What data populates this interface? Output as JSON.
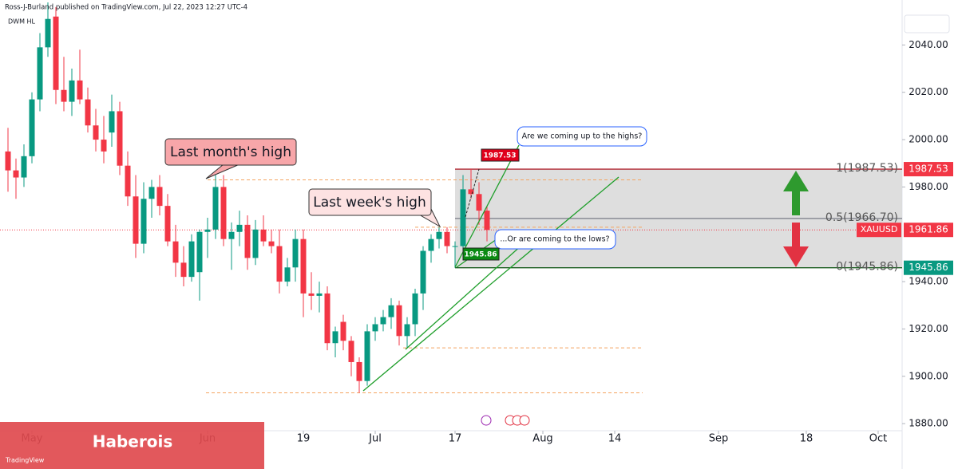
{
  "header": {
    "byline": "Ross-J-Burland published on TradingView.com, Jul 22, 2023 12:27 UTC-4",
    "indicator": "DWM HL"
  },
  "chart_data": {
    "type": "candlestick",
    "symbol": "XAUUSD",
    "open": [
      1995,
      1987,
      1984,
      1993,
      2017,
      2039,
      2052,
      2021,
      2016,
      2025,
      2017,
      2006,
      2000,
      2003,
      2012,
      1989,
      1976,
      1956,
      1975,
      1980,
      1972,
      1957,
      1948,
      1942,
      1944,
      1961,
      1962,
      1980,
      1958,
      1961,
      1964,
      1950,
      1962,
      1957,
      1955,
      1940,
      1946,
      1958,
      1935,
      1934,
      1935,
      1914,
      1923,
      1915,
      1906,
      1898,
      1919,
      1922,
      1925,
      1930,
      1917,
      1922,
      1935,
      1953,
      1958,
      1961,
      1955,
      1955,
      1979,
      1977,
      1970
    ],
    "high": [
      2005,
      1992,
      1998,
      2020,
      2045,
      2058,
      2056,
      2035,
      2030,
      2038,
      2022,
      2013,
      2010,
      2019,
      2016,
      1995,
      1985,
      1982,
      1983,
      1985,
      1977,
      1964,
      1955,
      1960,
      1962,
      1967,
      1985,
      1985,
      1965,
      1970,
      1968,
      1966,
      1968,
      1962,
      1962,
      1950,
      1962,
      1962,
      1944,
      1940,
      1938,
      1921,
      1926,
      1917,
      1908,
      1922,
      1925,
      1928,
      1933,
      1932,
      1925,
      1937,
      1955,
      1960,
      1963,
      1963,
      1957,
      1985,
      1987.53,
      1982,
      1972
    ],
    "low": [
      1978,
      1975,
      1980,
      1990,
      2012,
      2035,
      2015,
      2012,
      2010,
      2015,
      2003,
      1995,
      1990,
      1997,
      1985,
      1972,
      1950,
      1952,
      1967,
      1968,
      1955,
      1942,
      1938,
      1940,
      1932,
      1950,
      1958,
      1955,
      1945,
      1955,
      1945,
      1947,
      1955,
      1952,
      1935,
      1938,
      1940,
      1925,
      1928,
      1927,
      1911,
      1908,
      1911,
      1900,
      1893,
      1896,
      1915,
      1919,
      1920,
      1913,
      1912,
      1917,
      1928,
      1948,
      1954,
      1952,
      1945.86,
      1952,
      1975,
      1964,
      1957
    ],
    "close": [
      1987,
      1984,
      1993,
      2017,
      2039,
      2051,
      2021,
      2016,
      2025,
      2017,
      2006,
      2000,
      1995,
      2012,
      1989,
      1976,
      1956,
      1975,
      1980,
      1972,
      1957,
      1948,
      1942,
      1957,
      1961,
      1962,
      1980,
      1958,
      1961,
      1964,
      1950,
      1962,
      1957,
      1955,
      1940,
      1946,
      1958,
      1935,
      1934,
      1935,
      1914,
      1919,
      1915,
      1906,
      1898,
      1919,
      1922,
      1925,
      1930,
      1917,
      1922,
      1935,
      1953,
      1958,
      1961,
      1955,
      1955,
      1979,
      1977,
      1970,
      1961.86
    ],
    "up_color": "#089981",
    "down_color": "#f23645",
    "xlim": [
      -1,
      112
    ],
    "xticks": [
      {
        "value": 3,
        "label": "May"
      },
      {
        "value": 25,
        "label": "Jun"
      },
      {
        "value": 37,
        "label": "19"
      },
      {
        "value": 46,
        "label": "Jul"
      },
      {
        "value": 56,
        "label": "17"
      },
      {
        "value": 67,
        "label": "Aug"
      },
      {
        "value": 76,
        "label": "14"
      },
      {
        "value": 89,
        "label": "Sep"
      },
      {
        "value": 100,
        "label": "18"
      },
      {
        "value": 109,
        "label": "Oct"
      }
    ],
    "ylim": [
      1877,
      2059
    ],
    "yticks": [
      {
        "value": 2040,
        "label": "2040.00"
      },
      {
        "value": 2020,
        "label": "2020.00"
      },
      {
        "value": 2000,
        "label": "2000.00"
      },
      {
        "value": 1980,
        "label": "1980.00"
      },
      {
        "value": 1940,
        "label": "1940.00"
      },
      {
        "value": 1920,
        "label": "1920.00"
      },
      {
        "value": 1900,
        "label": "1900.00"
      },
      {
        "value": 1880,
        "label": "1880.00"
      }
    ],
    "last_price": 1961.86,
    "axis_tags": [
      {
        "value": 1987.53,
        "color": "#f23645"
      },
      {
        "value": 1945.86,
        "color": "#089981"
      }
    ],
    "fib": [
      {
        "price": 1987.53,
        "label": "1(1987.53)",
        "color": "#b22833"
      },
      {
        "price": 1966.7,
        "label": "0.5(1966.70)",
        "color": "#787b86"
      },
      {
        "price": 1945.86,
        "label": "0(1945.86)",
        "color": "#1b5e20"
      }
    ],
    "levels": [
      1983,
      1963,
      1912,
      1893
    ],
    "annotations": [
      "Last month's high",
      "Last week's high",
      "Are we coming up to the highs?",
      "...Or are coming to the lows?"
    ],
    "marker_tags": [
      1987.53,
      1945.86
    ]
  },
  "footer": {
    "watermark": "Haberois",
    "logo": "TradingView"
  }
}
